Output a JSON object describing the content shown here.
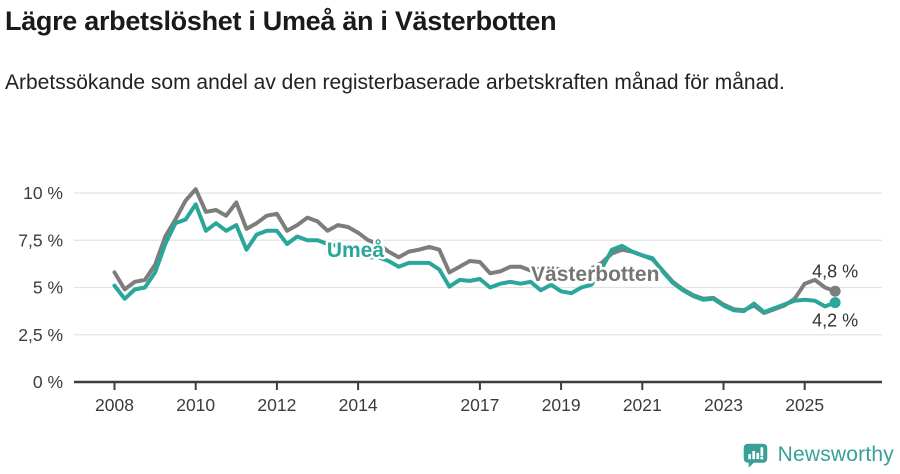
{
  "header": {
    "title": "Lägre arbetslöshet i Umeå än i Västerbotten",
    "subtitle": "Arbetssökande som andel av den registerbaserade arbetskraften månad för månad."
  },
  "footer": {
    "brand": "Newsworthy"
  },
  "colors": {
    "umea_line": "#2aa69a",
    "vasterbotten_line": "#7d7d7d",
    "axis_text": "#3c3c3c",
    "gridline": "#e2e2e2",
    "axis_line": "#3d3d3d",
    "end_label_text": "#333333",
    "brand_teal": "#38a098"
  },
  "chart_data": {
    "type": "line",
    "title": "Lägre arbetslöshet i Umeå än i Västerbotten",
    "subtitle": "Arbetssökande som andel av den registerbaserade arbetskraften månad för månad.",
    "unit": "%",
    "grid": true,
    "legend_position": "inline-labels",
    "y_axis": {
      "range": [
        0,
        10.8
      ],
      "ticks": [
        0,
        2.5,
        5,
        7.5,
        10
      ],
      "tick_labels": [
        "0 %",
        "2,5 %",
        "5 %",
        "7,5 %",
        "10 %"
      ]
    },
    "x_axis": {
      "range": [
        2008,
        2026
      ],
      "ticks": [
        2008,
        2010,
        2012,
        2014,
        2017,
        2019,
        2021,
        2023,
        2025
      ],
      "tick_labels": [
        "2008",
        "2010",
        "2012",
        "2014",
        "2017",
        "2019",
        "2021",
        "2023",
        "2025"
      ]
    },
    "series": [
      {
        "name": "Västerbotten",
        "color": "#7d7d7d",
        "label_color": "#757575",
        "label_at": [
          2018.26,
          5.34
        ],
        "end_label": "4,8 %",
        "end_value": 4.8,
        "end_label_position": "above",
        "points": [
          [
            2008.0,
            5.8
          ],
          [
            2008.25,
            4.9
          ],
          [
            2008.5,
            5.3
          ],
          [
            2008.75,
            5.4
          ],
          [
            2009.0,
            6.2
          ],
          [
            2009.25,
            7.7
          ],
          [
            2009.5,
            8.6
          ],
          [
            2009.75,
            9.6
          ],
          [
            2010.0,
            10.2
          ],
          [
            2010.25,
            9.0
          ],
          [
            2010.5,
            9.1
          ],
          [
            2010.75,
            8.8
          ],
          [
            2011.0,
            9.5
          ],
          [
            2011.25,
            8.1
          ],
          [
            2011.5,
            8.4
          ],
          [
            2011.75,
            8.8
          ],
          [
            2012.0,
            8.9
          ],
          [
            2012.25,
            8.0
          ],
          [
            2012.5,
            8.3
          ],
          [
            2012.75,
            8.7
          ],
          [
            2013.0,
            8.5
          ],
          [
            2013.25,
            8.0
          ],
          [
            2013.5,
            8.3
          ],
          [
            2013.75,
            8.2
          ],
          [
            2014.0,
            7.9
          ],
          [
            2014.25,
            7.5
          ],
          [
            2014.5,
            7.3
          ],
          [
            2014.75,
            6.9
          ],
          [
            2015.0,
            6.6
          ],
          [
            2015.25,
            6.9
          ],
          [
            2015.5,
            7.0
          ],
          [
            2015.75,
            7.15
          ],
          [
            2016.0,
            7.0
          ],
          [
            2016.25,
            5.8
          ],
          [
            2016.5,
            6.1
          ],
          [
            2016.75,
            6.4
          ],
          [
            2017.0,
            6.35
          ],
          [
            2017.25,
            5.75
          ],
          [
            2017.5,
            5.85
          ],
          [
            2017.75,
            6.1
          ],
          [
            2018.0,
            6.1
          ],
          [
            2018.25,
            5.9
          ],
          [
            2018.5,
            6.0
          ],
          [
            2018.75,
            6.05
          ],
          [
            2019.0,
            5.95
          ],
          [
            2019.25,
            5.7
          ],
          [
            2019.5,
            5.8
          ],
          [
            2019.75,
            6.0
          ],
          [
            2020.0,
            6.3
          ],
          [
            2020.25,
            6.8
          ],
          [
            2020.5,
            7.0
          ],
          [
            2020.75,
            6.9
          ],
          [
            2021.0,
            6.7
          ],
          [
            2021.25,
            6.5
          ],
          [
            2021.5,
            5.9
          ],
          [
            2021.75,
            5.3
          ],
          [
            2022.0,
            4.9
          ],
          [
            2022.25,
            4.6
          ],
          [
            2022.5,
            4.4
          ],
          [
            2022.75,
            4.45
          ],
          [
            2023.0,
            4.1
          ],
          [
            2023.25,
            3.85
          ],
          [
            2023.5,
            3.8
          ],
          [
            2023.75,
            4.05
          ],
          [
            2024.0,
            3.65
          ],
          [
            2024.25,
            3.85
          ],
          [
            2024.5,
            4.05
          ],
          [
            2024.75,
            4.4
          ],
          [
            2025.0,
            5.2
          ],
          [
            2025.25,
            5.4
          ],
          [
            2025.5,
            5.0
          ],
          [
            2025.75,
            4.8
          ]
        ]
      },
      {
        "name": "Umeå",
        "color": "#2aa69a",
        "label_color": "#2aa69a",
        "label_at": [
          2013.23,
          6.61
        ],
        "end_label": "4,2 %",
        "end_value": 4.2,
        "end_label_position": "below",
        "points": [
          [
            2008.0,
            5.1
          ],
          [
            2008.25,
            4.4
          ],
          [
            2008.5,
            4.9
          ],
          [
            2008.75,
            5.0
          ],
          [
            2009.0,
            5.8
          ],
          [
            2009.25,
            7.3
          ],
          [
            2009.5,
            8.4
          ],
          [
            2009.75,
            8.6
          ],
          [
            2010.0,
            9.4
          ],
          [
            2010.25,
            8.0
          ],
          [
            2010.5,
            8.4
          ],
          [
            2010.75,
            8.0
          ],
          [
            2011.0,
            8.3
          ],
          [
            2011.25,
            7.0
          ],
          [
            2011.5,
            7.8
          ],
          [
            2011.75,
            8.0
          ],
          [
            2012.0,
            8.0
          ],
          [
            2012.25,
            7.3
          ],
          [
            2012.5,
            7.7
          ],
          [
            2012.75,
            7.5
          ],
          [
            2013.0,
            7.5
          ],
          [
            2013.25,
            7.3
          ],
          [
            2013.5,
            7.2
          ],
          [
            2013.75,
            7.1
          ],
          [
            2014.0,
            6.7
          ],
          [
            2014.25,
            6.6
          ],
          [
            2014.5,
            6.6
          ],
          [
            2014.75,
            6.4
          ],
          [
            2015.0,
            6.1
          ],
          [
            2015.25,
            6.3
          ],
          [
            2015.5,
            6.3
          ],
          [
            2015.75,
            6.3
          ],
          [
            2016.0,
            5.95
          ],
          [
            2016.25,
            5.05
          ],
          [
            2016.5,
            5.4
          ],
          [
            2016.75,
            5.35
          ],
          [
            2017.0,
            5.45
          ],
          [
            2017.25,
            5.0
          ],
          [
            2017.5,
            5.2
          ],
          [
            2017.75,
            5.3
          ],
          [
            2018.0,
            5.2
          ],
          [
            2018.25,
            5.3
          ],
          [
            2018.5,
            4.85
          ],
          [
            2018.75,
            5.15
          ],
          [
            2019.0,
            4.8
          ],
          [
            2019.25,
            4.7
          ],
          [
            2019.5,
            5.0
          ],
          [
            2019.75,
            5.15
          ],
          [
            2020.0,
            6.0
          ],
          [
            2020.25,
            7.0
          ],
          [
            2020.5,
            7.2
          ],
          [
            2020.75,
            6.9
          ],
          [
            2021.0,
            6.7
          ],
          [
            2021.25,
            6.55
          ],
          [
            2021.5,
            5.85
          ],
          [
            2021.75,
            5.25
          ],
          [
            2022.0,
            4.85
          ],
          [
            2022.25,
            4.55
          ],
          [
            2022.5,
            4.35
          ],
          [
            2022.75,
            4.4
          ],
          [
            2023.0,
            4.05
          ],
          [
            2023.25,
            3.8
          ],
          [
            2023.5,
            3.75
          ],
          [
            2023.75,
            4.15
          ],
          [
            2024.0,
            3.7
          ],
          [
            2024.25,
            3.9
          ],
          [
            2024.5,
            4.1
          ],
          [
            2024.75,
            4.3
          ],
          [
            2025.0,
            4.35
          ],
          [
            2025.25,
            4.3
          ],
          [
            2025.5,
            4.0
          ],
          [
            2025.75,
            4.2
          ]
        ]
      }
    ]
  }
}
